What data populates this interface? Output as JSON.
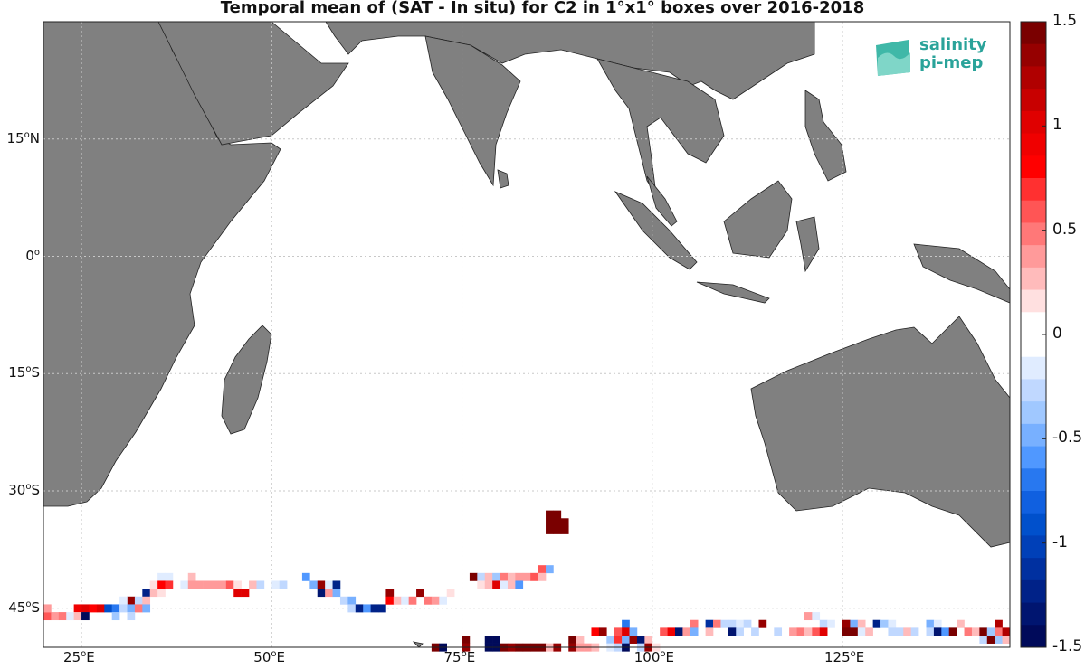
{
  "title": "Temporal mean of (SAT - In situ) for C2 in 1°x1° boxes over 2016-2018",
  "logo": {
    "line1": "salinity",
    "line2": "pi-mep"
  },
  "lat_labels": [
    {
      "deg": "15",
      "hemi": "N"
    },
    {
      "deg": "0",
      "hemi": ""
    },
    {
      "deg": "15",
      "hemi": "S"
    },
    {
      "deg": "30",
      "hemi": "S"
    },
    {
      "deg": "45",
      "hemi": "S"
    }
  ],
  "lon_labels": [
    {
      "deg": "25",
      "hemi": "E"
    },
    {
      "deg": "50",
      "hemi": "E"
    },
    {
      "deg": "75",
      "hemi": "E"
    },
    {
      "deg": "100",
      "hemi": "E"
    },
    {
      "deg": "125",
      "hemi": "E"
    }
  ],
  "colorbar": {
    "ticks": [
      "1.5",
      "1",
      "0.5",
      "0",
      "-0.5",
      "-1",
      "-1.5"
    ],
    "range": [
      -1.5,
      1.5
    ],
    "colors_top_to_bottom": [
      "#7a0000",
      "#960000",
      "#b00000",
      "#c80000",
      "#e00000",
      "#f00000",
      "#ff0000",
      "#ff3030",
      "#ff5555",
      "#ff7878",
      "#ff9a9a",
      "#ffbbbb",
      "#ffe0e0",
      "#ffffff",
      "#ffffff",
      "#e0ecff",
      "#c0d8ff",
      "#a0c8ff",
      "#78b0ff",
      "#5098ff",
      "#2878f0",
      "#1060e0",
      "#0050cc",
      "#0040b8",
      "#0030a0",
      "#002288",
      "#001570",
      "#000a5a"
    ]
  },
  "colors": {
    "land": "#808080",
    "ocean": "#ffffff",
    "grid": "#c8c8c8"
  },
  "chart_data": {
    "type": "heatmap",
    "region": {
      "lon": [
        20,
        147
      ],
      "lat": [
        -50,
        30
      ]
    },
    "units": "pss",
    "cells": [
      {
        "lat": -34,
        "lon": 86,
        "v": 1.5
      },
      {
        "lat": -34,
        "lon": 87,
        "v": 1.5
      },
      {
        "lat": -34,
        "lon": 88,
        "v": 1.4
      },
      {
        "lat": -33,
        "lon": 86,
        "v": 1.5
      },
      {
        "lat": -33,
        "lon": 87,
        "v": 1.5
      },
      {
        "lat": -35,
        "lon": 86,
        "v": 1.5
      },
      {
        "lat": -35,
        "lon": 87,
        "v": 1.5
      },
      {
        "lat": -35,
        "lon": 88,
        "v": 1.5
      },
      {
        "lat": -40,
        "lon": 85,
        "v": 0.6
      },
      {
        "lat": -40,
        "lon": 86,
        "v": -0.5
      },
      {
        "lat": -41,
        "lon": 76,
        "v": 1.4
      },
      {
        "lat": -41,
        "lon": 77,
        "v": -0.3
      },
      {
        "lat": -41,
        "lon": 78,
        "v": 0.3
      },
      {
        "lat": -41,
        "lon": 79,
        "v": -0.4
      },
      {
        "lat": -41,
        "lon": 80,
        "v": 0.5
      },
      {
        "lat": -41,
        "lon": 81,
        "v": 0.3
      },
      {
        "lat": -41,
        "lon": 82,
        "v": 0.4
      },
      {
        "lat": -41,
        "lon": 83,
        "v": 0.4
      },
      {
        "lat": -41,
        "lon": 84,
        "v": 0.6
      },
      {
        "lat": -41,
        "lon": 85,
        "v": 0.3
      },
      {
        "lat": -42,
        "lon": 77,
        "v": 0.2
      },
      {
        "lat": -42,
        "lon": 78,
        "v": 0.3
      },
      {
        "lat": -42,
        "lon": 79,
        "v": 1.0
      },
      {
        "lat": -42,
        "lon": 80,
        "v": -0.2
      },
      {
        "lat": -42,
        "lon": 81,
        "v": 0.3
      },
      {
        "lat": -42,
        "lon": 82,
        "v": -0.6
      },
      {
        "lat": -41,
        "lon": 35,
        "v": -0.2
      },
      {
        "lat": -41,
        "lon": 36,
        "v": -0.2
      },
      {
        "lat": -41,
        "lon": 39,
        "v": 0.3
      },
      {
        "lat": -42,
        "lon": 34,
        "v": 0.2
      },
      {
        "lat": -42,
        "lon": 35,
        "v": 0.8
      },
      {
        "lat": -42,
        "lon": 36,
        "v": 0.7
      },
      {
        "lat": -42,
        "lon": 38,
        "v": -0.2
      },
      {
        "lat": -42,
        "lon": 39,
        "v": 0.4
      },
      {
        "lat": -42,
        "lon": 40,
        "v": 0.4
      },
      {
        "lat": -42,
        "lon": 41,
        "v": 0.4
      },
      {
        "lat": -42,
        "lon": 42,
        "v": 0.4
      },
      {
        "lat": -42,
        "lon": 43,
        "v": 0.4
      },
      {
        "lat": -42,
        "lon": 44,
        "v": 0.6
      },
      {
        "lat": -42,
        "lon": 45,
        "v": 0.2
      },
      {
        "lat": -42,
        "lon": 47,
        "v": 0.3
      },
      {
        "lat": -42,
        "lon": 48,
        "v": -0.3
      },
      {
        "lat": -42,
        "lon": 50,
        "v": -0.2
      },
      {
        "lat": -42,
        "lon": 51,
        "v": -0.3
      },
      {
        "lat": -43,
        "lon": 33,
        "v": -1.2
      },
      {
        "lat": -43,
        "lon": 34,
        "v": 0.3
      },
      {
        "lat": -43,
        "lon": 35,
        "v": 0.2
      },
      {
        "lat": -43,
        "lon": 45,
        "v": 1.0
      },
      {
        "lat": -43,
        "lon": 46,
        "v": 1.0
      },
      {
        "lat": -44,
        "lon": 31,
        "v": 1.3
      },
      {
        "lat": -44,
        "lon": 30,
        "v": -0.2
      },
      {
        "lat": -44,
        "lon": 32,
        "v": -0.3
      },
      {
        "lat": -44,
        "lon": 33,
        "v": 0.3
      },
      {
        "lat": -45,
        "lon": 24,
        "v": 0.9
      },
      {
        "lat": -45,
        "lon": 25,
        "v": 1.0
      },
      {
        "lat": -45,
        "lon": 26,
        "v": 0.8
      },
      {
        "lat": -45,
        "lon": 27,
        "v": 1.0
      },
      {
        "lat": -45,
        "lon": 28,
        "v": -0.9
      },
      {
        "lat": -45,
        "lon": 29,
        "v": -0.7
      },
      {
        "lat": -45,
        "lon": 30,
        "v": -0.3
      },
      {
        "lat": -45,
        "lon": 31,
        "v": -0.5
      },
      {
        "lat": -45,
        "lon": 32,
        "v": 0.5
      },
      {
        "lat": -45,
        "lon": 33,
        "v": -0.5
      },
      {
        "lat": -46,
        "lon": 20,
        "v": 0.6
      },
      {
        "lat": -46,
        "lon": 21,
        "v": 0.4
      },
      {
        "lat": -46,
        "lon": 22,
        "v": 0.5
      },
      {
        "lat": -46,
        "lon": 23,
        "v": -0.2
      },
      {
        "lat": -46,
        "lon": 24,
        "v": 0.3
      },
      {
        "lat": -46,
        "lon": 25,
        "v": -1.4
      },
      {
        "lat": -46,
        "lon": 29,
        "v": -0.4
      },
      {
        "lat": -46,
        "lon": 31,
        "v": -0.3
      },
      {
        "lat": -45,
        "lon": 20,
        "v": 0.4
      },
      {
        "lat": -41,
        "lon": 54,
        "v": -0.6
      },
      {
        "lat": -42,
        "lon": 55,
        "v": -0.5
      },
      {
        "lat": -42,
        "lon": 56,
        "v": 1.3
      },
      {
        "lat": -42,
        "lon": 57,
        "v": -0.2
      },
      {
        "lat": -42,
        "lon": 58,
        "v": -1.2
      },
      {
        "lat": -43,
        "lon": 56,
        "v": -1.3
      },
      {
        "lat": -43,
        "lon": 57,
        "v": 0.4
      },
      {
        "lat": -43,
        "lon": 58,
        "v": -0.5
      },
      {
        "lat": -44,
        "lon": 59,
        "v": -0.3
      },
      {
        "lat": -44,
        "lon": 60,
        "v": -0.5
      },
      {
        "lat": -45,
        "lon": 60,
        "v": -0.3
      },
      {
        "lat": -45,
        "lon": 61,
        "v": -1.2
      },
      {
        "lat": -45,
        "lon": 62,
        "v": -0.6
      },
      {
        "lat": -45,
        "lon": 63,
        "v": -1.2
      },
      {
        "lat": -45,
        "lon": 64,
        "v": -1.2
      },
      {
        "lat": -43,
        "lon": 65,
        "v": 1.3
      },
      {
        "lat": -43,
        "lon": 69,
        "v": 1.3
      },
      {
        "lat": -44,
        "lon": 65,
        "v": 0.8
      },
      {
        "lat": -44,
        "lon": 66,
        "v": 0.3
      },
      {
        "lat": -44,
        "lon": 67,
        "v": -0.2
      },
      {
        "lat": -44,
        "lon": 68,
        "v": 0.5
      },
      {
        "lat": -44,
        "lon": 70,
        "v": 0.5
      },
      {
        "lat": -44,
        "lon": 71,
        "v": 0.4
      },
      {
        "lat": -43,
        "lon": 73,
        "v": 0.2
      },
      {
        "lat": -44,
        "lon": 72,
        "v": -0.2
      },
      {
        "lat": -47,
        "lon": 96,
        "v": -0.7
      },
      {
        "lat": -47,
        "lon": 105,
        "v": 0.5
      },
      {
        "lat": -47,
        "lon": 107,
        "v": -1.1
      },
      {
        "lat": -47,
        "lon": 108,
        "v": 0.5
      },
      {
        "lat": -47,
        "lon": 109,
        "v": -0.3
      },
      {
        "lat": -47,
        "lon": 110,
        "v": -0.3
      },
      {
        "lat": -47,
        "lon": 111,
        "v": -0.2
      },
      {
        "lat": -47,
        "lon": 112,
        "v": -0.3
      },
      {
        "lat": -47,
        "lon": 114,
        "v": 1.3
      },
      {
        "lat": -46,
        "lon": 120,
        "v": 0.4
      },
      {
        "lat": -46,
        "lon": 121,
        "v": -0.2
      },
      {
        "lat": -47,
        "lon": 122,
        "v": -0.3
      },
      {
        "lat": -47,
        "lon": 123,
        "v": -0.2
      },
      {
        "lat": -47,
        "lon": 125,
        "v": 1.3
      },
      {
        "lat": -47,
        "lon": 126,
        "v": -0.5
      },
      {
        "lat": -47,
        "lon": 127,
        "v": 0.3
      },
      {
        "lat": -47,
        "lon": 129,
        "v": -1.2
      },
      {
        "lat": -47,
        "lon": 130,
        "v": -0.4
      },
      {
        "lat": -47,
        "lon": 131,
        "v": -0.2
      },
      {
        "lat": -47,
        "lon": 136,
        "v": -0.5
      },
      {
        "lat": -47,
        "lon": 137,
        "v": -0.2
      },
      {
        "lat": -47,
        "lon": 140,
        "v": 0.3
      },
      {
        "lat": -47,
        "lon": 145,
        "v": 1.2
      },
      {
        "lat": -48,
        "lon": 92,
        "v": 0.8
      },
      {
        "lat": -48,
        "lon": 93,
        "v": 1.3
      },
      {
        "lat": -48,
        "lon": 95,
        "v": 0.6
      },
      {
        "lat": -48,
        "lon": 96,
        "v": 1.0
      },
      {
        "lat": -48,
        "lon": 97,
        "v": -0.5
      },
      {
        "lat": -48,
        "lon": 101,
        "v": 0.6
      },
      {
        "lat": -48,
        "lon": 102,
        "v": 0.9
      },
      {
        "lat": -48,
        "lon": 103,
        "v": -1.3
      },
      {
        "lat": -48,
        "lon": 104,
        "v": 0.4
      },
      {
        "lat": -48,
        "lon": 105,
        "v": -0.5
      },
      {
        "lat": -48,
        "lon": 107,
        "v": 0.3
      },
      {
        "lat": -48,
        "lon": 110,
        "v": -1.3
      },
      {
        "lat": -48,
        "lon": 111,
        "v": -0.3
      },
      {
        "lat": -48,
        "lon": 113,
        "v": -0.3
      },
      {
        "lat": -48,
        "lon": 116,
        "v": -0.3
      },
      {
        "lat": -48,
        "lon": 118,
        "v": 0.4
      },
      {
        "lat": -48,
        "lon": 119,
        "v": 0.5
      },
      {
        "lat": -48,
        "lon": 120,
        "v": 0.3
      },
      {
        "lat": -48,
        "lon": 121,
        "v": 0.6
      },
      {
        "lat": -48,
        "lon": 122,
        "v": 1.0
      },
      {
        "lat": -48,
        "lon": 125,
        "v": 1.4
      },
      {
        "lat": -48,
        "lon": 126,
        "v": 1.4
      },
      {
        "lat": -48,
        "lon": 127,
        "v": -0.2
      },
      {
        "lat": -48,
        "lon": 128,
        "v": 0.3
      },
      {
        "lat": -48,
        "lon": 131,
        "v": -0.3
      },
      {
        "lat": -48,
        "lon": 132,
        "v": -0.3
      },
      {
        "lat": -48,
        "lon": 133,
        "v": 0.3
      },
      {
        "lat": -48,
        "lon": 134,
        "v": -0.3
      },
      {
        "lat": -48,
        "lon": 136,
        "v": -0.3
      },
      {
        "lat": -48,
        "lon": 137,
        "v": -1.3
      },
      {
        "lat": -48,
        "lon": 138,
        "v": -0.6
      },
      {
        "lat": -48,
        "lon": 139,
        "v": 1.4
      },
      {
        "lat": -48,
        "lon": 141,
        "v": 0.5
      },
      {
        "lat": -48,
        "lon": 142,
        "v": 0.3
      },
      {
        "lat": -48,
        "lon": 143,
        "v": 1.5
      },
      {
        "lat": -48,
        "lon": 144,
        "v": -0.4
      },
      {
        "lat": -48,
        "lon": 145,
        "v": 0.5
      },
      {
        "lat": -48,
        "lon": 146,
        "v": 1.2
      },
      {
        "lat": -49,
        "lon": 78,
        "v": -1.5
      },
      {
        "lat": -49,
        "lon": 79,
        "v": -1.4
      },
      {
        "lat": -49,
        "lon": 75,
        "v": 1.4
      },
      {
        "lat": -49,
        "lon": 89,
        "v": 1.4
      },
      {
        "lat": -49,
        "lon": 90,
        "v": 0.3
      },
      {
        "lat": -49,
        "lon": 94,
        "v": -0.4
      },
      {
        "lat": -49,
        "lon": 95,
        "v": 0.7
      },
      {
        "lat": -49,
        "lon": 96,
        "v": -0.5
      },
      {
        "lat": -49,
        "lon": 97,
        "v": 1.3
      },
      {
        "lat": -49,
        "lon": 98,
        "v": -1.3
      },
      {
        "lat": -49,
        "lon": 99,
        "v": 0.3
      },
      {
        "lat": -49,
        "lon": 143,
        "v": -0.3
      },
      {
        "lat": -49,
        "lon": 144,
        "v": 1.4
      },
      {
        "lat": -49,
        "lon": 145,
        "v": -0.4
      },
      {
        "lat": -49,
        "lon": 146,
        "v": 0.3
      },
      {
        "lat": -50,
        "lon": 71,
        "v": 1.4
      },
      {
        "lat": -50,
        "lon": 72,
        "v": -1.4
      },
      {
        "lat": -50,
        "lon": 75,
        "v": 1.3
      },
      {
        "lat": -50,
        "lon": 78,
        "v": -1.5
      },
      {
        "lat": -50,
        "lon": 79,
        "v": -1.4
      },
      {
        "lat": -50,
        "lon": 80,
        "v": 1.4
      },
      {
        "lat": -50,
        "lon": 81,
        "v": 1.3
      },
      {
        "lat": -50,
        "lon": 82,
        "v": 1.4
      },
      {
        "lat": -50,
        "lon": 83,
        "v": 1.5
      },
      {
        "lat": -50,
        "lon": 84,
        "v": 1.4
      },
      {
        "lat": -50,
        "lon": 85,
        "v": 1.4
      },
      {
        "lat": -50,
        "lon": 86,
        "v": 0.3
      },
      {
        "lat": -50,
        "lon": 87,
        "v": 1.3
      },
      {
        "lat": -50,
        "lon": 89,
        "v": 1.3
      },
      {
        "lat": -50,
        "lon": 90,
        "v": 0.4
      },
      {
        "lat": -50,
        "lon": 91,
        "v": 0.4
      },
      {
        "lat": -50,
        "lon": 92,
        "v": 0.3
      },
      {
        "lat": -50,
        "lon": 94,
        "v": -0.2
      },
      {
        "lat": -50,
        "lon": 95,
        "v": -0.3
      },
      {
        "lat": -50,
        "lon": 96,
        "v": -1.4
      },
      {
        "lat": -50,
        "lon": 98,
        "v": -0.3
      },
      {
        "lat": -50,
        "lon": 99,
        "v": 1.3
      },
      {
        "lat": -50,
        "lon": 100,
        "v": 0.2
      }
    ]
  }
}
